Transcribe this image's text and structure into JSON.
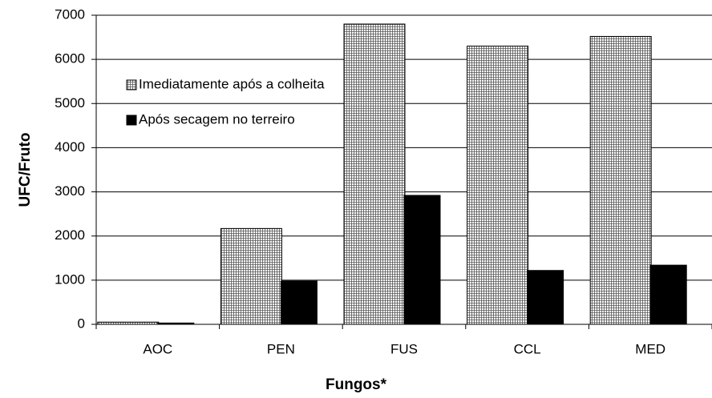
{
  "chart_data": {
    "type": "bar",
    "x_label": "Fungos*",
    "y_label": "UFC/Fruto",
    "categories": [
      "AOC",
      "PEN",
      "FUS",
      "CCL",
      "MED"
    ],
    "series": [
      {
        "name": "Imediatamente após a colheita",
        "color": "#ffffff",
        "pattern": "grid",
        "values": [
          50,
          2170,
          6800,
          6300,
          6520
        ]
      },
      {
        "name": "Após secagem no terreiro",
        "color": "#000000",
        "values": [
          30,
          980,
          2920,
          1220,
          1340
        ]
      }
    ],
    "ylim": [
      0,
      7000
    ],
    "yticks": [
      0,
      1000,
      2000,
      3000,
      4000,
      5000,
      6000,
      7000
    ],
    "grid": true,
    "legend": "upper left"
  }
}
